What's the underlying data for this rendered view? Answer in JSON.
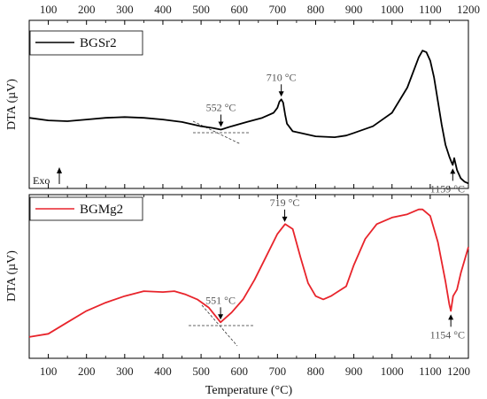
{
  "chart_data": {
    "type": "line",
    "xlabel": "Temperature (°C)",
    "xlim": [
      50,
      1200
    ],
    "xticks": [
      100,
      200,
      300,
      400,
      500,
      600,
      700,
      800,
      900,
      1000,
      1100,
      1200
    ],
    "panels": [
      {
        "name": "top",
        "ylabel": "DTA (µV)",
        "ylim": [
          0,
          100
        ],
        "legend": {
          "label": "BGSr2",
          "color": "#000000",
          "position": "top-left"
        },
        "exo_label": "Exo",
        "series": [
          {
            "name": "BGSr2",
            "color": "#000000",
            "x": [
              50,
              100,
              150,
              200,
              250,
              300,
              350,
              400,
              450,
              500,
              530,
              552,
              580,
              620,
              660,
              690,
              700,
              705,
              710,
              715,
              720,
              725,
              730,
              740,
              760,
              800,
              850,
              880,
              900,
              950,
              1000,
              1040,
              1070,
              1080,
              1090,
              1100,
              1110,
              1120,
              1130,
              1140,
              1150,
              1155,
              1159,
              1163,
              1170,
              1180,
              1190,
              1200
            ],
            "y": [
              42,
              40.5,
              40,
              41,
              42,
              42.5,
              42,
              41,
              39.5,
              37,
              36,
              35,
              37,
              39.5,
              42,
              45,
              48,
              51.5,
              53,
              51,
              44,
              38.5,
              37,
              34,
              33,
              31,
              30.5,
              31.5,
              33,
              37,
              45,
              60,
              78,
              82,
              81,
              76,
              66,
              52,
              38,
              26,
              19,
              16,
              14,
              18,
              11,
              6,
              4,
              3
            ]
          }
        ],
        "annotations": [
          {
            "label": "552 °C",
            "x": 552,
            "arrow": "down"
          },
          {
            "label": "710 °C",
            "x": 710,
            "arrow": "down"
          },
          {
            "label": "1159 °C",
            "x": 1159,
            "arrow": "up"
          }
        ]
      },
      {
        "name": "bottom",
        "ylabel": "DTA (µV)",
        "ylim": [
          0,
          100
        ],
        "legend": {
          "label": "BGMg2",
          "color": "#e8242b",
          "position": "top-left"
        },
        "series": [
          {
            "name": "BGMg2",
            "color": "#e8242b",
            "x": [
              50,
              100,
              150,
              200,
              250,
              300,
              350,
              400,
              430,
              460,
              490,
              520,
              551,
              580,
              610,
              640,
              670,
              700,
              720,
              740,
              760,
              780,
              800,
              820,
              840,
              860,
              880,
              900,
              930,
              960,
              1000,
              1040,
              1070,
              1080,
              1100,
              1120,
              1140,
              1150,
              1154,
              1160,
              1170,
              1180,
              1190,
              1200
            ],
            "y": [
              13,
              15,
              22,
              29,
              34,
              38,
              41,
              40.5,
              41,
              39,
              36,
              31,
              22,
              28,
              36,
              48,
              62,
              76,
              82,
              79,
              62,
              46,
              38,
              36,
              38,
              41,
              44,
              57,
              73,
              82,
              86,
              88,
              91,
              91,
              87,
              71,
              47,
              33,
              29,
              38,
              42,
              52,
              60,
              68
            ]
          }
        ],
        "annotations": [
          {
            "label": "551 °C",
            "x": 551,
            "arrow": "down"
          },
          {
            "label": "719 °C",
            "x": 719,
            "arrow": "down"
          },
          {
            "label": "1154 °C",
            "x": 1154,
            "arrow": "up"
          }
        ]
      }
    ]
  }
}
